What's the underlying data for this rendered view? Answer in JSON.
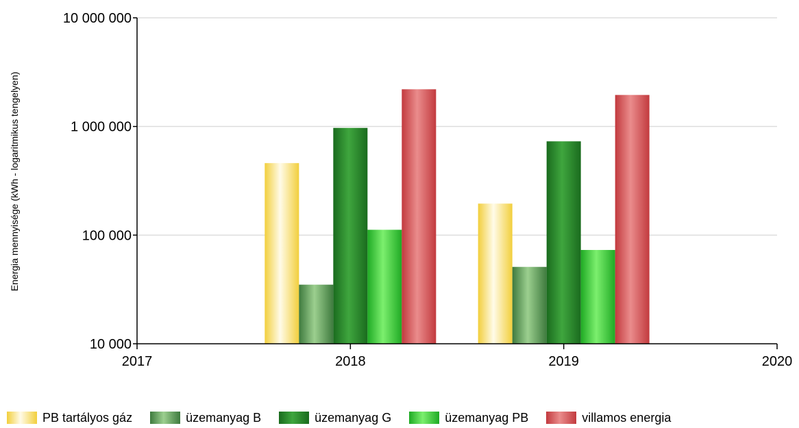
{
  "chart_data": {
    "type": "bar",
    "ylabel": "Energia mennyisége (kWh - logaritmikus tengelyen)",
    "xlabel": "",
    "y_scale": "log",
    "ylim": [
      10000,
      10000000
    ],
    "y_ticks": [
      {
        "value": 10000,
        "label": "10 000"
      },
      {
        "value": 100000,
        "label": "100 000"
      },
      {
        "value": 1000000,
        "label": "1 000 000"
      },
      {
        "value": 10000000,
        "label": "10 000 000"
      }
    ],
    "xlim": [
      2017,
      2020
    ],
    "x_ticks": [
      {
        "value": 2017,
        "label": "2017"
      },
      {
        "value": 2018,
        "label": "2018"
      },
      {
        "value": 2019,
        "label": "2019"
      },
      {
        "value": 2020,
        "label": "2020"
      }
    ],
    "categories": [
      2018,
      2019
    ],
    "grid": true,
    "legend_position": "bottom",
    "series": [
      {
        "name": "PB  tartályos gáz",
        "values": [
          460000,
          195000
        ],
        "color_dark": "#f2cf3c",
        "color_light": "#fffbe8"
      },
      {
        "name": "üzemanyag B",
        "values": [
          35000,
          51000
        ],
        "color_dark": "#3e7a3e",
        "color_light": "#9ccf8f"
      },
      {
        "name": "üzemanyag G",
        "values": [
          970000,
          730000
        ],
        "color_dark": "#1a6b1e",
        "color_light": "#3fa63e"
      },
      {
        "name": "üzemanyag PB",
        "values": [
          112000,
          73000
        ],
        "color_dark": "#1faa24",
        "color_light": "#7cef6e"
      },
      {
        "name": "villamos energia",
        "values": [
          2200000,
          1950000
        ],
        "color_dark": "#c23a3e",
        "color_light": "#ea8c8c"
      }
    ]
  }
}
